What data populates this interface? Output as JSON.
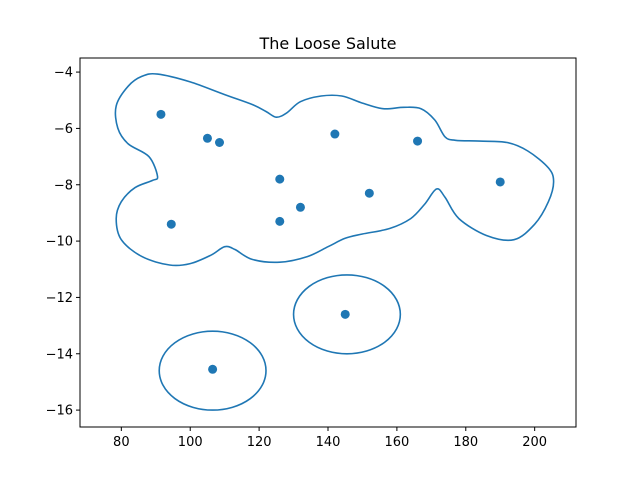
{
  "chart_data": {
    "type": "scatter",
    "title": "The Loose Salute",
    "xlabel": "",
    "ylabel": "",
    "xlim": [
      68,
      212
    ],
    "ylim": [
      -16.6,
      -3.5
    ],
    "xticks": [
      80,
      100,
      120,
      140,
      160,
      180,
      200
    ],
    "yticks": [
      -4,
      -6,
      -8,
      -10,
      -12,
      -14,
      -16
    ],
    "grid": false,
    "colors": {
      "series": "#1f77b4",
      "axes": "#000000",
      "background": "#ffffff"
    },
    "points": [
      {
        "x": 91.5,
        "y": -5.5
      },
      {
        "x": 105.0,
        "y": -6.35
      },
      {
        "x": 108.5,
        "y": -6.5
      },
      {
        "x": 142.0,
        "y": -6.2
      },
      {
        "x": 166.0,
        "y": -6.45
      },
      {
        "x": 126.0,
        "y": -7.8
      },
      {
        "x": 152.0,
        "y": -8.3
      },
      {
        "x": 190.0,
        "y": -7.9
      },
      {
        "x": 132.0,
        "y": -8.8
      },
      {
        "x": 126.0,
        "y": -9.3
      },
      {
        "x": 94.5,
        "y": -9.4
      },
      {
        "x": 145.0,
        "y": -12.6
      },
      {
        "x": 106.5,
        "y": -14.55
      }
    ],
    "contours": [
      {
        "name": "",
        "closed": true,
        "points": [
          [
            90.5,
            -4.07
          ],
          [
            100,
            -4.35
          ],
          [
            110,
            -4.8
          ],
          [
            118,
            -5.15
          ],
          [
            122,
            -5.4
          ],
          [
            125,
            -5.6
          ],
          [
            128,
            -5.45
          ],
          [
            132,
            -5.05
          ],
          [
            138,
            -4.85
          ],
          [
            144,
            -4.85
          ],
          [
            150,
            -5.1
          ],
          [
            156,
            -5.3
          ],
          [
            162,
            -5.25
          ],
          [
            167,
            -5.3
          ],
          [
            171,
            -5.7
          ],
          [
            174,
            -6.3
          ],
          [
            177,
            -6.42
          ],
          [
            184,
            -6.45
          ],
          [
            192,
            -6.5
          ],
          [
            198,
            -6.8
          ],
          [
            204,
            -7.4
          ],
          [
            205.5,
            -7.9
          ],
          [
            204,
            -8.6
          ],
          [
            200,
            -9.4
          ],
          [
            194,
            -9.95
          ],
          [
            186,
            -9.8
          ],
          [
            178,
            -9.2
          ],
          [
            174,
            -8.45
          ],
          [
            171.5,
            -8.15
          ],
          [
            168,
            -8.7
          ],
          [
            164,
            -9.2
          ],
          [
            158,
            -9.55
          ],
          [
            150,
            -9.75
          ],
          [
            145,
            -9.9
          ],
          [
            140,
            -10.2
          ],
          [
            134,
            -10.55
          ],
          [
            126,
            -10.75
          ],
          [
            118,
            -10.65
          ],
          [
            113,
            -10.3
          ],
          [
            110,
            -10.2
          ],
          [
            106,
            -10.5
          ],
          [
            100,
            -10.8
          ],
          [
            94,
            -10.85
          ],
          [
            86,
            -10.55
          ],
          [
            80,
            -9.95
          ],
          [
            78.5,
            -9.2
          ],
          [
            80,
            -8.6
          ],
          [
            84,
            -8.1
          ],
          [
            89,
            -7.85
          ],
          [
            90.5,
            -7.7
          ],
          [
            88,
            -7.0
          ],
          [
            82,
            -6.55
          ],
          [
            79,
            -6.0
          ],
          [
            78.5,
            -5.2
          ],
          [
            82,
            -4.5
          ],
          [
            86,
            -4.15
          ],
          [
            90.5,
            -4.07
          ]
        ]
      },
      {
        "name": "",
        "closed": true,
        "ellipse": {
          "cx": 145.5,
          "cy": -12.6,
          "rx": 15.5,
          "ry": 1.4
        }
      },
      {
        "name": "",
        "closed": true,
        "ellipse": {
          "cx": 106.5,
          "cy": -14.6,
          "rx": 15.5,
          "ry": 1.4
        }
      }
    ]
  }
}
